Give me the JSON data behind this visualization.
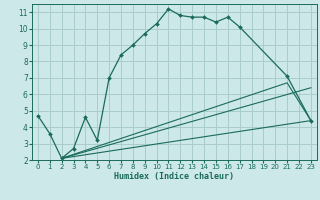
{
  "xlabel": "Humidex (Indice chaleur)",
  "bg_color": "#cce8e8",
  "grid_color": "#aacccc",
  "line_color": "#1a6b5a",
  "xlim": [
    -0.5,
    23.5
  ],
  "ylim": [
    2,
    11.5
  ],
  "yticks": [
    2,
    3,
    4,
    5,
    6,
    7,
    8,
    9,
    10,
    11
  ],
  "xticks": [
    0,
    1,
    2,
    3,
    4,
    5,
    6,
    7,
    8,
    9,
    10,
    11,
    12,
    13,
    14,
    15,
    16,
    17,
    18,
    19,
    20,
    21,
    22,
    23
  ],
  "main_curve": {
    "x": [
      0,
      1,
      2,
      3,
      4,
      5,
      6,
      7,
      8,
      9,
      10,
      11,
      12,
      13,
      14,
      15,
      16,
      17,
      21,
      23
    ],
    "y": [
      4.7,
      3.6,
      2.1,
      2.7,
      4.6,
      3.2,
      7.0,
      8.4,
      9.0,
      9.7,
      10.3,
      11.2,
      10.8,
      10.7,
      10.7,
      10.4,
      10.7,
      10.1,
      7.1,
      4.4
    ]
  },
  "line1": {
    "x": [
      2,
      23
    ],
    "y": [
      2.1,
      6.4
    ]
  },
  "line2": {
    "x": [
      2,
      21,
      23
    ],
    "y": [
      2.1,
      6.7,
      4.4
    ]
  },
  "line3": {
    "x": [
      2,
      23
    ],
    "y": [
      2.1,
      4.4
    ]
  }
}
